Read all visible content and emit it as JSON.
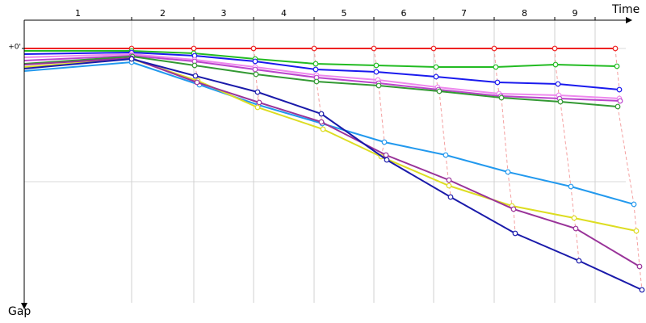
{
  "chart_data": {
    "type": "line",
    "x_label": "Time",
    "y_label": "Gap",
    "xlim": [
      0,
      745
    ],
    "ylim": [
      -35,
      315
    ],
    "y_inverted": true,
    "yticks": [
      {
        "value": 0,
        "label": "+0'"
      }
    ],
    "ygrid": [
      0,
      165
    ],
    "laps": [
      {
        "label": "1",
        "start": 0,
        "end": 133
      },
      {
        "label": "2",
        "start": 133,
        "end": 210
      },
      {
        "label": "3",
        "start": 210,
        "end": 284
      },
      {
        "label": "4",
        "start": 284,
        "end": 359
      },
      {
        "label": "5",
        "start": 359,
        "end": 433
      },
      {
        "label": "6",
        "start": 433,
        "end": 507
      },
      {
        "label": "7",
        "start": 507,
        "end": 582
      },
      {
        "label": "8",
        "start": 582,
        "end": 657
      },
      {
        "label": "9",
        "start": 657,
        "end": 707
      }
    ],
    "lap_line_color": "#f4a0a0",
    "series": [
      {
        "color": "#ee2222",
        "x": [
          0,
          133,
          210,
          284,
          359,
          433,
          507,
          582,
          657,
          732
        ],
        "values": [
          0,
          0,
          0,
          0,
          0,
          0,
          0,
          0,
          0,
          0
        ]
      },
      {
        "color": "#22bb22",
        "x": [
          0,
          133,
          210,
          286,
          361,
          436,
          510,
          584,
          658,
          734
        ],
        "values": [
          3,
          3,
          6,
          13,
          19,
          21,
          23,
          23,
          20,
          22
        ]
      },
      {
        "color": "#1a1aee",
        "x": [
          0,
          133,
          211,
          286,
          361,
          436,
          510,
          586,
          661,
          737
        ],
        "values": [
          7,
          5,
          9,
          16,
          26,
          29,
          35,
          42,
          44,
          51
        ]
      },
      {
        "color": "#ee88ee",
        "x": [
          0,
          133,
          211,
          286,
          362,
          438,
          512,
          588,
          662,
          737
        ],
        "values": [
          11,
          7,
          14,
          23,
          33,
          39,
          48,
          56,
          58,
          62
        ]
      },
      {
        "color": "#bb44cc",
        "x": [
          0,
          133,
          211,
          286,
          362,
          439,
          513,
          590,
          663,
          738
        ],
        "values": [
          15,
          9,
          16,
          26,
          36,
          43,
          51,
          59,
          62,
          65
        ]
      },
      {
        "color": "#339933",
        "x": [
          0,
          134,
          211,
          287,
          362,
          439,
          514,
          591,
          664,
          735
        ],
        "values": [
          19,
          10,
          21,
          32,
          41,
          46,
          53,
          61,
          66,
          72
        ]
      },
      {
        "color": "#2299ee",
        "x": [
          0,
          133,
          217,
          290,
          369,
          446,
          522,
          599,
          677,
          755
        ],
        "values": [
          28,
          17,
          45,
          70,
          93,
          116,
          132,
          153,
          171,
          193
        ]
      },
      {
        "color": "#dddd22",
        "x": [
          0,
          133,
          215,
          289,
          370,
          442,
          526,
          604,
          681,
          758
        ],
        "values": [
          23,
          13,
          40,
          73,
          100,
          134,
          170,
          195,
          210,
          226
        ]
      },
      {
        "color": "#993399",
        "x": [
          0,
          133,
          214,
          291,
          368,
          448,
          526,
          606,
          683,
          762
        ],
        "values": [
          20,
          12,
          42,
          67,
          91,
          132,
          163,
          199,
          223,
          270
        ]
      },
      {
        "color": "#1a1aaa",
        "x": [
          0,
          133,
          212,
          289,
          368,
          449,
          528,
          608,
          687,
          765
        ],
        "values": [
          25,
          13,
          34,
          54,
          81,
          138,
          184,
          229,
          263,
          299
        ]
      }
    ]
  }
}
